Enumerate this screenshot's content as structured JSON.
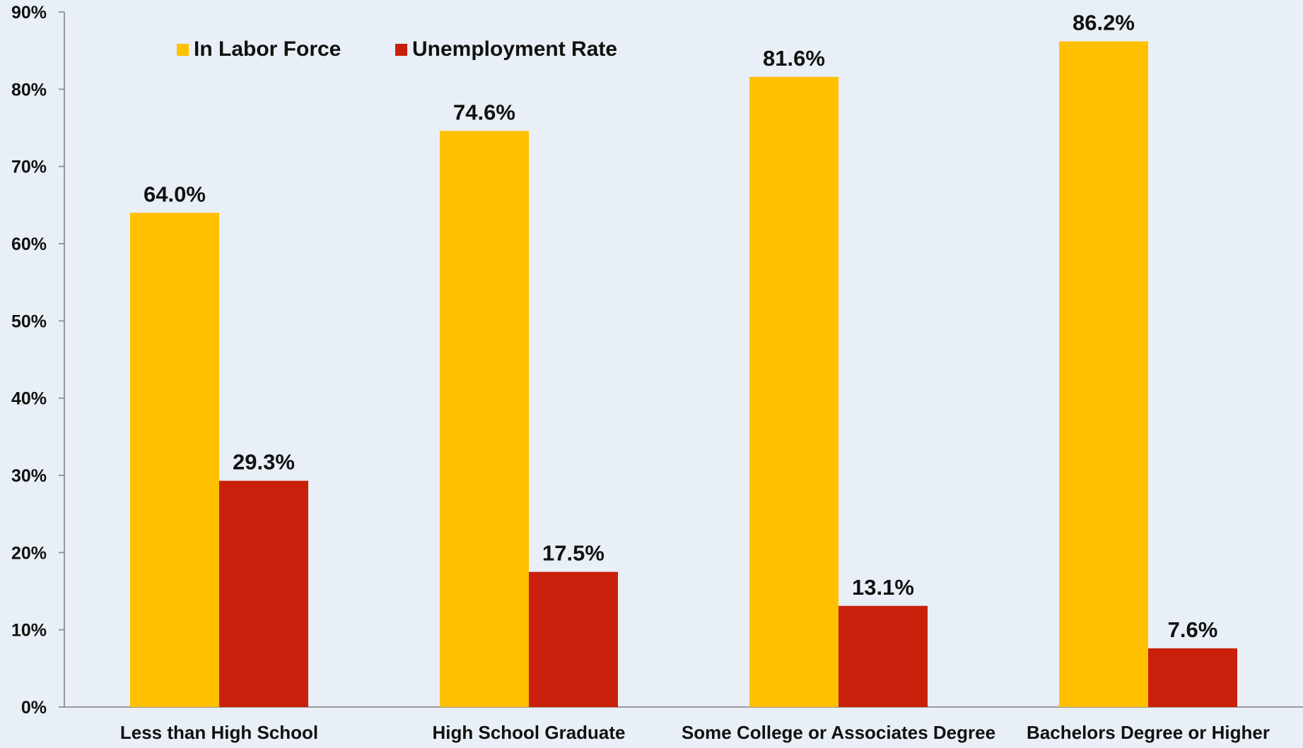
{
  "chart_data": {
    "type": "bar",
    "categories": [
      "Less than High School",
      "High School Graduate",
      "Some College or Associates Degree",
      "Bachelors Degree or Higher"
    ],
    "series": [
      {
        "name": "In Labor Force",
        "color": "#ffc000",
        "values": [
          64.0,
          74.6,
          81.6,
          86.2
        ],
        "labels": [
          "64.0%",
          "74.6%",
          "81.6%",
          "86.2%"
        ]
      },
      {
        "name": "Unemployment Rate",
        "color": "#c8200a",
        "values": [
          29.3,
          17.5,
          13.1,
          7.6
        ],
        "labels": [
          "29.3%",
          "17.5%",
          "13.1%",
          "7.6%"
        ]
      }
    ],
    "ylim": [
      0,
      90
    ],
    "y_ticks": [
      0,
      10,
      20,
      30,
      40,
      50,
      60,
      70,
      80,
      90
    ],
    "y_tick_labels": [
      "0%",
      "10%",
      "20%",
      "30%",
      "40%",
      "50%",
      "60%",
      "70%",
      "80%",
      "90%"
    ],
    "title": "",
    "xlabel": "",
    "ylabel": "",
    "grid": false,
    "legend_position": "top-left",
    "background_color": "#e9eff6",
    "axis_color": "#999999"
  }
}
